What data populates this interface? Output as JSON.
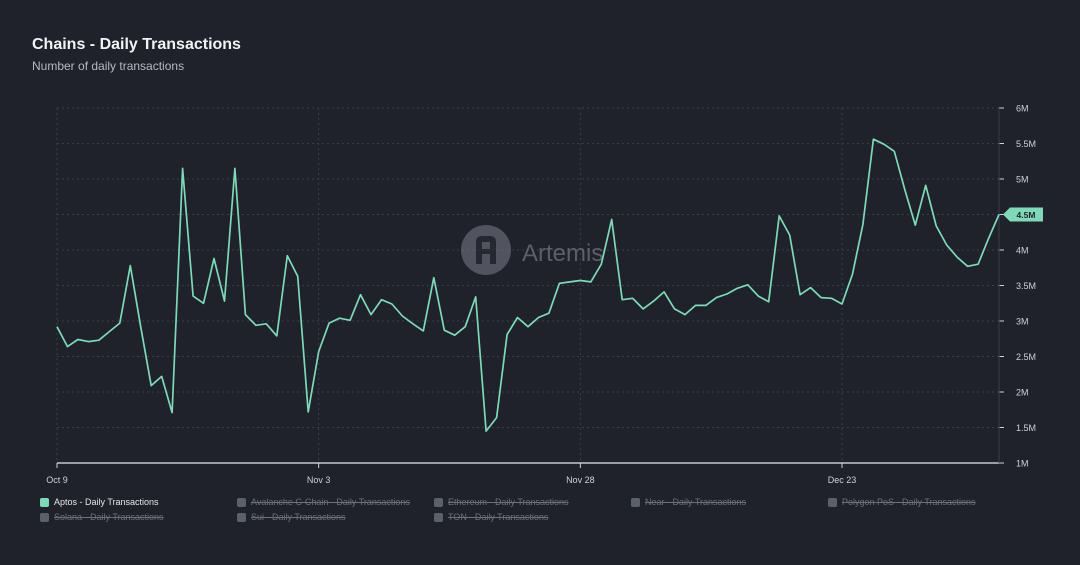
{
  "header": {
    "title": "Chains - Daily Transactions",
    "subtitle": "Number of daily transactions"
  },
  "watermark": {
    "text": "Artemis",
    "icon": "artemis-logo-icon"
  },
  "colors": {
    "background": "#1f222b",
    "line": "#7fd9b8",
    "grid": "#3a3e49",
    "axis": "#cfd2d8",
    "badge": "#7fd9b8",
    "legend_hidden": "#5c606a"
  },
  "chart_data": {
    "type": "line",
    "title": "Chains - Daily Transactions",
    "subtitle": "Number of daily transactions",
    "xlabel": "",
    "ylabel": "",
    "ylim": [
      1000000,
      6000000
    ],
    "y_ticks": [
      "1M",
      "1.5M",
      "2M",
      "2.5M",
      "3M",
      "3.5M",
      "4M",
      "4.5M",
      "5M",
      "5.5M",
      "6M"
    ],
    "x_ticks": [
      {
        "label": "Oct 9",
        "day": 0
      },
      {
        "label": "Nov 3",
        "day": 25
      },
      {
        "label": "Nov 28",
        "day": 50
      },
      {
        "label": "Dec 23",
        "day": 75
      }
    ],
    "grid": true,
    "y_axis_side": "right",
    "last_value_label": "4.5M",
    "series": [
      {
        "name": "Aptos - Daily Transactions",
        "dates": [
          "Oct 9",
          "Oct 10",
          "Oct 11",
          "Oct 12",
          "Oct 13",
          "Oct 14",
          "Oct 15",
          "Oct 16",
          "Oct 17",
          "Oct 18",
          "Oct 19",
          "Oct 20",
          "Oct 21",
          "Oct 22",
          "Oct 23",
          "Oct 24",
          "Oct 25",
          "Oct 26",
          "Oct 27",
          "Oct 28",
          "Oct 29",
          "Oct 30",
          "Oct 31",
          "Nov 1",
          "Nov 2",
          "Nov 3",
          "Nov 4",
          "Nov 5",
          "Nov 6",
          "Nov 7",
          "Nov 8",
          "Nov 9",
          "Nov 10",
          "Nov 11",
          "Nov 12",
          "Nov 13",
          "Nov 14",
          "Nov 15",
          "Nov 16",
          "Nov 17",
          "Nov 18",
          "Nov 19",
          "Nov 20",
          "Nov 21",
          "Nov 22",
          "Nov 23",
          "Nov 24",
          "Nov 25",
          "Nov 26",
          "Nov 27",
          "Nov 28",
          "Nov 29",
          "Nov 30",
          "Dec 1",
          "Dec 2",
          "Dec 3",
          "Dec 4",
          "Dec 5",
          "Dec 6",
          "Dec 7",
          "Dec 8",
          "Dec 9",
          "Dec 10",
          "Dec 11",
          "Dec 12",
          "Dec 13",
          "Dec 14",
          "Dec 15",
          "Dec 16",
          "Dec 17",
          "Dec 18",
          "Dec 19",
          "Dec 20",
          "Dec 21",
          "Dec 22",
          "Dec 23",
          "Dec 24",
          "Dec 25",
          "Dec 26",
          "Dec 27",
          "Dec 28",
          "Dec 29",
          "Dec 30",
          "Dec 31",
          "Jan 1",
          "Jan 2",
          "Jan 3",
          "Jan 4",
          "Jan 5",
          "Jan 6",
          "Jan 7"
        ],
        "values": [
          2920000,
          2640000,
          2740000,
          2710000,
          2730000,
          2850000,
          2970000,
          3780000,
          2920000,
          2090000,
          2220000,
          1710000,
          5150000,
          3350000,
          3250000,
          3880000,
          3280000,
          5150000,
          3090000,
          2940000,
          2960000,
          2790000,
          3920000,
          3630000,
          1720000,
          2570000,
          2970000,
          3040000,
          3010000,
          3370000,
          3090000,
          3300000,
          3240000,
          3070000,
          2960000,
          2860000,
          3610000,
          2870000,
          2800000,
          2920000,
          3340000,
          1450000,
          1640000,
          2810000,
          3050000,
          2920000,
          3050000,
          3110000,
          3530000,
          3550000,
          3570000,
          3550000,
          3800000,
          4430000,
          3300000,
          3320000,
          3170000,
          3280000,
          3410000,
          3170000,
          3090000,
          3220000,
          3220000,
          3330000,
          3380000,
          3460000,
          3510000,
          3350000,
          3270000,
          4480000,
          4210000,
          3370000,
          3470000,
          3330000,
          3320000,
          3240000,
          3660000,
          4360000,
          5560000,
          5490000,
          5390000,
          4850000,
          4350000,
          4910000,
          4340000,
          4070000,
          3900000,
          3770000,
          3800000,
          4160000,
          4500000
        ]
      }
    ]
  },
  "legend": {
    "items": [
      {
        "label": "Aptos - Daily Transactions",
        "color": "#7fd9b8",
        "active": true
      },
      {
        "label": "Avalanche C-Chain - Daily Transactions",
        "color": "#5c606a",
        "active": false
      },
      {
        "label": "Ethereum - Daily Transactions",
        "color": "#5c606a",
        "active": false
      },
      {
        "label": "Near - Daily Transactions",
        "color": "#5c606a",
        "active": false
      },
      {
        "label": "Polygon PoS - Daily Transactions",
        "color": "#5c606a",
        "active": false
      },
      {
        "label": "Solana - Daily Transactions",
        "color": "#5c606a",
        "active": false
      },
      {
        "label": "Sui - Daily Transactions",
        "color": "#5c606a",
        "active": false
      },
      {
        "label": "TON - Daily Transactions",
        "color": "#5c606a",
        "active": false
      }
    ]
  }
}
